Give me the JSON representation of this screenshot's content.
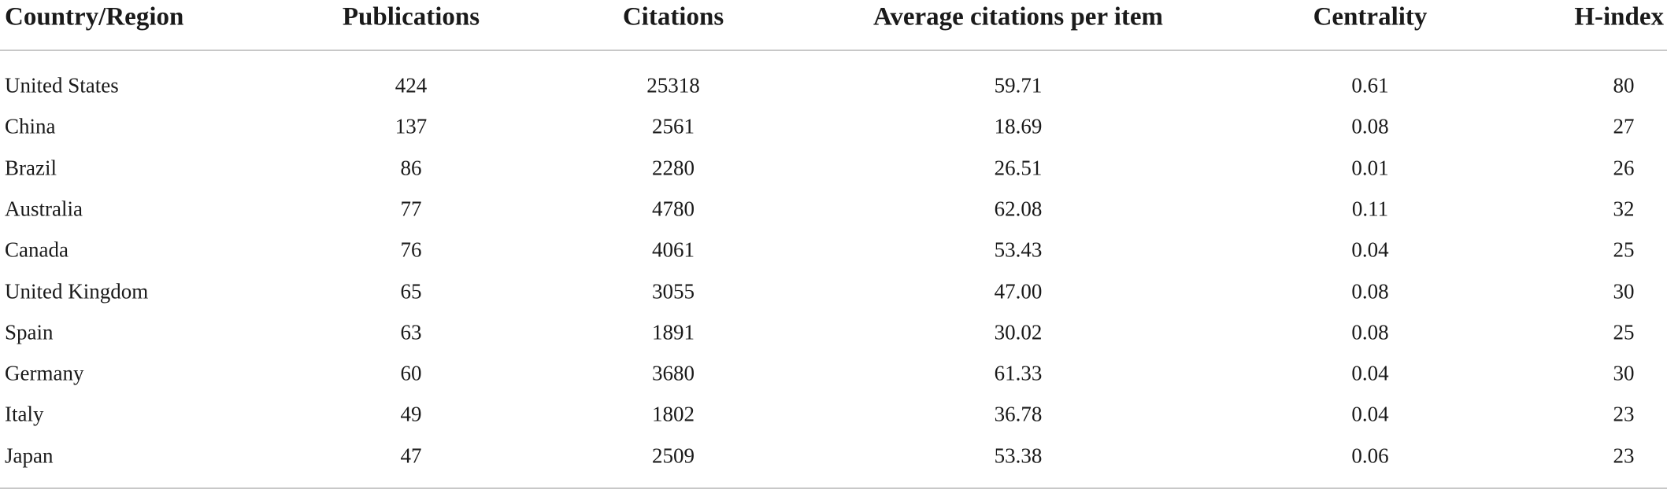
{
  "table": {
    "header": [
      "Country/Region",
      "Publications",
      "Citations",
      "Average citations per item",
      "Centrality",
      "H-index"
    ],
    "rows": [
      [
        "United States",
        "424",
        "25318",
        "59.71",
        "0.61",
        "80"
      ],
      [
        "China",
        "137",
        "2561",
        "18.69",
        "0.08",
        "27"
      ],
      [
        "Brazil",
        "86",
        "2280",
        "26.51",
        "0.01",
        "26"
      ],
      [
        "Australia",
        "77",
        "4780",
        "62.08",
        "0.11",
        "32"
      ],
      [
        "Canada",
        "76",
        "4061",
        "53.43",
        "0.04",
        "25"
      ],
      [
        "United Kingdom",
        "65",
        "3055",
        "47.00",
        "0.08",
        "30"
      ],
      [
        "Spain",
        "63",
        "1891",
        "30.02",
        "0.08",
        "25"
      ],
      [
        "Germany",
        "60",
        "3680",
        "61.33",
        "0.04",
        "30"
      ],
      [
        "Italy",
        "49",
        "1802",
        "36.78",
        "0.04",
        "23"
      ],
      [
        "Japan",
        "47",
        "2509",
        "53.38",
        "0.06",
        "23"
      ]
    ]
  }
}
